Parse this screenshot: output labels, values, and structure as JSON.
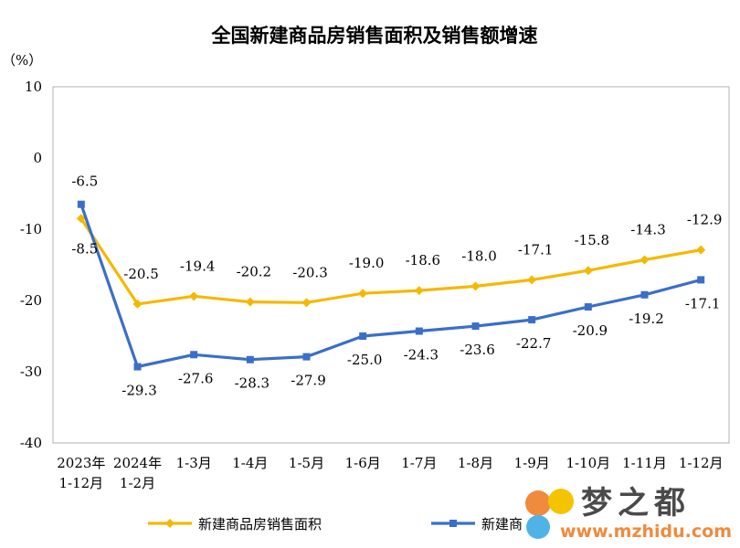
{
  "chart_data": {
    "type": "line",
    "title": "全国新建商品房销售面积及销售额增速",
    "ylabel": "（%）",
    "xlabel": "",
    "ylim": [
      -40,
      10
    ],
    "yticks": [
      10,
      0,
      -10,
      -20,
      -30,
      -40
    ],
    "categories": [
      [
        "2023年",
        "1-12月"
      ],
      [
        "2024年",
        "1-2月"
      ],
      [
        "1-3月"
      ],
      [
        "1-4月"
      ],
      [
        "1-5月"
      ],
      [
        "1-6月"
      ],
      [
        "1-7月"
      ],
      [
        "1-8月"
      ],
      [
        "1-9月"
      ],
      [
        "1-10月"
      ],
      [
        "1-11月"
      ],
      [
        "1-12月"
      ]
    ],
    "series": [
      {
        "name": "新建商品房销售面积",
        "color": "#f5b800",
        "values": [
          -8.5,
          -20.5,
          -19.4,
          -20.2,
          -20.3,
          -19.0,
          -18.6,
          -18.0,
          -17.1,
          -15.8,
          -14.3,
          -12.9
        ],
        "labels": [
          "-8.5",
          "-20.5",
          "-19.4",
          "-20.2",
          "-20.3",
          "-19.0",
          "-18.6",
          "-18.0",
          "-17.1",
          "-15.8",
          "-14.3",
          "-12.9"
        ]
      },
      {
        "name": "新建商",
        "color": "#3a6fc9",
        "values": [
          -6.5,
          -29.3,
          -27.6,
          -28.3,
          -27.9,
          -25.0,
          -24.3,
          -23.6,
          -22.7,
          -20.9,
          -19.2,
          -17.1
        ],
        "labels": [
          "-6.5",
          "-29.3",
          "-27.6",
          "-28.3",
          "-27.9",
          "-25.0",
          "-24.3",
          "-23.6",
          "-22.7",
          "-20.9",
          "-19.2",
          "-17.1"
        ]
      }
    ],
    "grid": false,
    "legend": "bottom"
  },
  "watermark": {
    "text": "梦之都",
    "url": "www.mzhidu.com"
  }
}
